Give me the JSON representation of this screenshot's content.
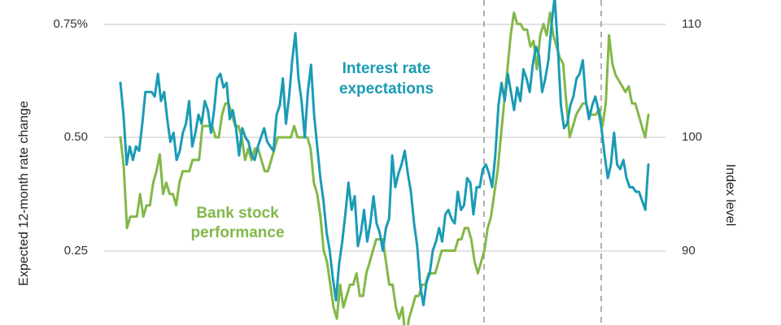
{
  "chart_data": {
    "type": "line",
    "title": "",
    "ylabel": "Expected 12-month rate change",
    "ylabel_right": "Index level",
    "y_left": {
      "ylim": [
        0.14,
        0.79
      ],
      "ticks": [
        "0.25",
        "0.50",
        "0.75%"
      ],
      "tick_values": [
        0.25,
        0.5,
        0.75
      ]
    },
    "y_right": {
      "ylim": [
        82,
        111.5
      ],
      "ticks": [
        "90",
        "100",
        "110"
      ],
      "tick_values": [
        90,
        100,
        110
      ]
    },
    "grid": true,
    "colors": {
      "rates": "#1a9bb5",
      "bank": "#82b848",
      "grid": "#cfcfcf",
      "vline": "#9a9a9a"
    },
    "reference_lines": 2,
    "series": [
      {
        "name": "Interest rate expectations",
        "axis": "left",
        "color": "#1a9bb5",
        "values": [
          0.62,
          0.55,
          0.44,
          0.48,
          0.45,
          0.48,
          0.47,
          0.53,
          0.6,
          0.6,
          0.6,
          0.59,
          0.64,
          0.58,
          0.6,
          0.54,
          0.49,
          0.51,
          0.45,
          0.47,
          0.51,
          0.53,
          0.58,
          0.48,
          0.51,
          0.55,
          0.53,
          0.58,
          0.56,
          0.51,
          0.56,
          0.63,
          0.64,
          0.61,
          0.62,
          0.54,
          0.56,
          0.52,
          0.46,
          0.52,
          0.5,
          0.49,
          0.46,
          0.45,
          0.48,
          0.5,
          0.52,
          0.49,
          0.48,
          0.47,
          0.55,
          0.57,
          0.63,
          0.53,
          0.59,
          0.67,
          0.73,
          0.63,
          0.58,
          0.5,
          0.6,
          0.66,
          0.55,
          0.48,
          0.41,
          0.36,
          0.29,
          0.25,
          0.19,
          0.14,
          0.22,
          0.27,
          0.33,
          0.4,
          0.34,
          0.37,
          0.26,
          0.29,
          0.34,
          0.27,
          0.31,
          0.37,
          0.31,
          0.29,
          0.25,
          0.3,
          0.32,
          0.46,
          0.39,
          0.42,
          0.44,
          0.47,
          0.42,
          0.38,
          0.31,
          0.26,
          0.17,
          0.13,
          0.18,
          0.2,
          0.25,
          0.27,
          0.3,
          0.27,
          0.33,
          0.34,
          0.32,
          0.31,
          0.38,
          0.34,
          0.35,
          0.41,
          0.4,
          0.33,
          0.39,
          0.39,
          0.43,
          0.44,
          0.42,
          0.39,
          0.46,
          0.57,
          0.62,
          0.58,
          0.64,
          0.6,
          0.56,
          0.61,
          0.58,
          0.65,
          0.63,
          0.6,
          0.66,
          0.7,
          0.68,
          0.6,
          0.63,
          0.67,
          0.75,
          0.81,
          0.7,
          0.57,
          0.52,
          0.53,
          0.57,
          0.59,
          0.63,
          0.64,
          0.67,
          0.58,
          0.54,
          0.57,
          0.59,
          0.56,
          0.52,
          0.46,
          0.41,
          0.44,
          0.51,
          0.44,
          0.43,
          0.45,
          0.41,
          0.39,
          0.39,
          0.38,
          0.38,
          0.36,
          0.34,
          0.44
        ]
      },
      {
        "name": "Bank stock performance",
        "axis": "right",
        "color": "#82b848",
        "values": [
          100,
          97.5,
          92,
          93,
          93,
          93,
          95,
          93,
          94,
          94,
          96,
          97,
          98.5,
          95,
          96,
          95,
          95,
          94,
          96,
          97,
          97,
          97,
          98,
          98,
          98,
          101,
          101,
          101,
          101,
          100,
          100,
          102,
          103,
          103,
          102,
          101,
          101,
          100,
          98,
          99,
          98,
          99,
          99,
          98,
          97,
          97,
          98,
          99,
          100,
          100,
          100,
          100,
          100,
          101,
          100,
          100,
          100,
          100,
          99,
          96,
          95,
          93,
          90,
          89,
          87,
          85,
          84,
          87,
          85,
          86,
          87,
          87,
          88,
          86,
          86,
          88,
          89,
          90,
          91,
          91,
          91,
          89,
          87,
          87,
          85,
          84,
          85,
          82,
          84,
          85,
          86,
          86,
          87,
          87,
          88,
          88,
          88,
          89,
          90,
          90,
          90,
          90,
          90,
          91,
          91,
          92,
          92,
          91,
          89,
          88,
          89,
          90,
          92,
          93,
          95,
          97,
          100,
          103,
          106,
          109,
          111,
          110,
          110,
          109.5,
          109.5,
          108,
          108.5,
          106,
          109,
          110,
          109,
          111,
          109,
          108,
          107,
          106.5,
          103,
          100,
          101,
          102,
          102.5,
          103,
          103,
          102,
          102,
          102,
          102.5,
          101,
          103,
          109,
          106.5,
          105.5,
          105,
          104.5,
          104,
          104.5,
          103,
          103,
          102,
          101,
          100,
          102
        ]
      }
    ],
    "annotations": [
      "Interest rate expectations",
      "Bank stock performance"
    ]
  },
  "labels": {
    "left_ticks": [
      "0.75%",
      "0.50",
      "0.25"
    ],
    "right_ticks": [
      "110",
      "100",
      "90"
    ],
    "left_axis_title": "Expected 12-month rate change",
    "right_axis_title": "Index level",
    "rates_label_line1": "Interest rate",
    "rates_label_line2": "expectations",
    "bank_label_line1": "Bank stock",
    "bank_label_line2": "performance"
  }
}
